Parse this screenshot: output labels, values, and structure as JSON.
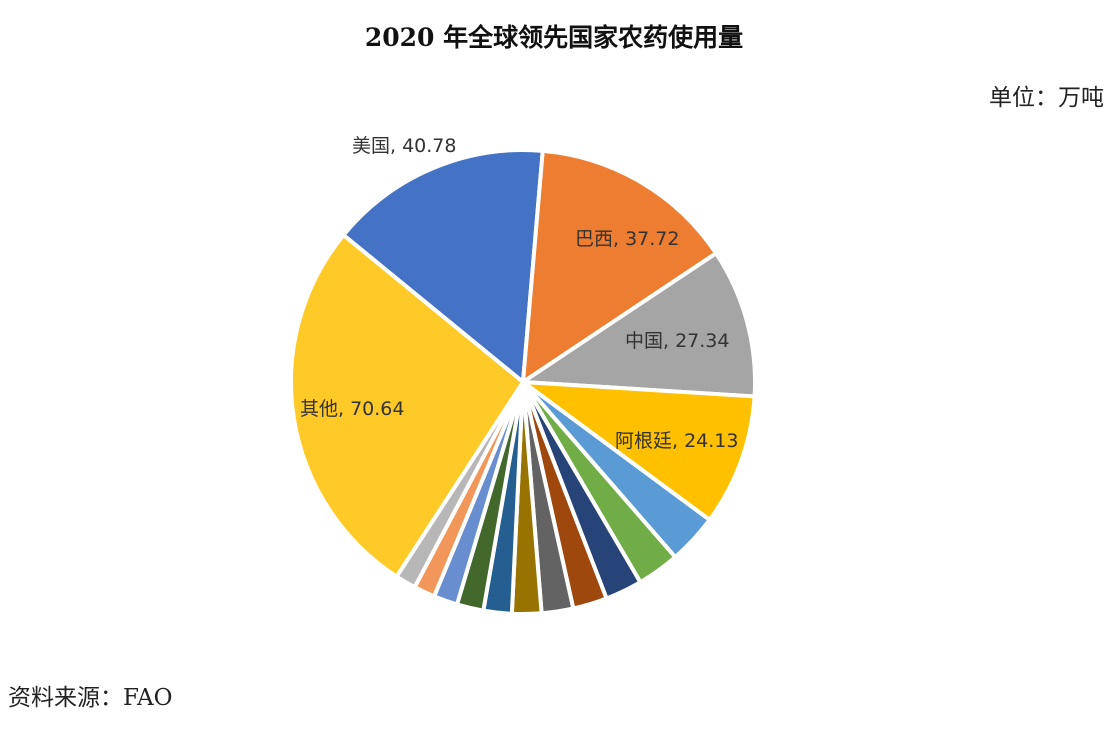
{
  "chart_data": {
    "type": "pie",
    "title": "2020 年全球领先国家农药使用量",
    "unit": "单位：万吨",
    "source": "资料来源：FAO",
    "slices": [
      {
        "label": "美国",
        "value": 40.78,
        "color": "#4472C4",
        "display": "美国, 40.78"
      },
      {
        "label": "巴西",
        "value": 37.72,
        "color": "#ED7D31",
        "display": "巴西, 37.72"
      },
      {
        "label": "中国",
        "value": 27.34,
        "color": "#A5A5A5",
        "display": "中国, 27.34"
      },
      {
        "label": "阿根廷",
        "value": 24.13,
        "color": "#FFC000",
        "display": "阿根廷, 24.13"
      },
      {
        "label": "",
        "value": 9.2,
        "color": "#5B9BD5"
      },
      {
        "label": "",
        "value": 7.8,
        "color": "#70AD47"
      },
      {
        "label": "",
        "value": 6.8,
        "color": "#264478"
      },
      {
        "label": "",
        "value": 6.3,
        "color": "#9E480E"
      },
      {
        "label": "",
        "value": 5.8,
        "color": "#636363"
      },
      {
        "label": "",
        "value": 5.4,
        "color": "#997300"
      },
      {
        "label": "",
        "value": 5.2,
        "color": "#255E91"
      },
      {
        "label": "",
        "value": 4.9,
        "color": "#43682B"
      },
      {
        "label": "",
        "value": 4.4,
        "color": "#698ED0"
      },
      {
        "label": "",
        "value": 3.9,
        "color": "#F1975A"
      },
      {
        "label": "",
        "value": 3.8,
        "color": "#B7B7B7"
      },
      {
        "label": "其他",
        "value": 70.64,
        "color": "#FFCA28",
        "display": "其他, 70.64"
      }
    ],
    "legend": "none"
  }
}
